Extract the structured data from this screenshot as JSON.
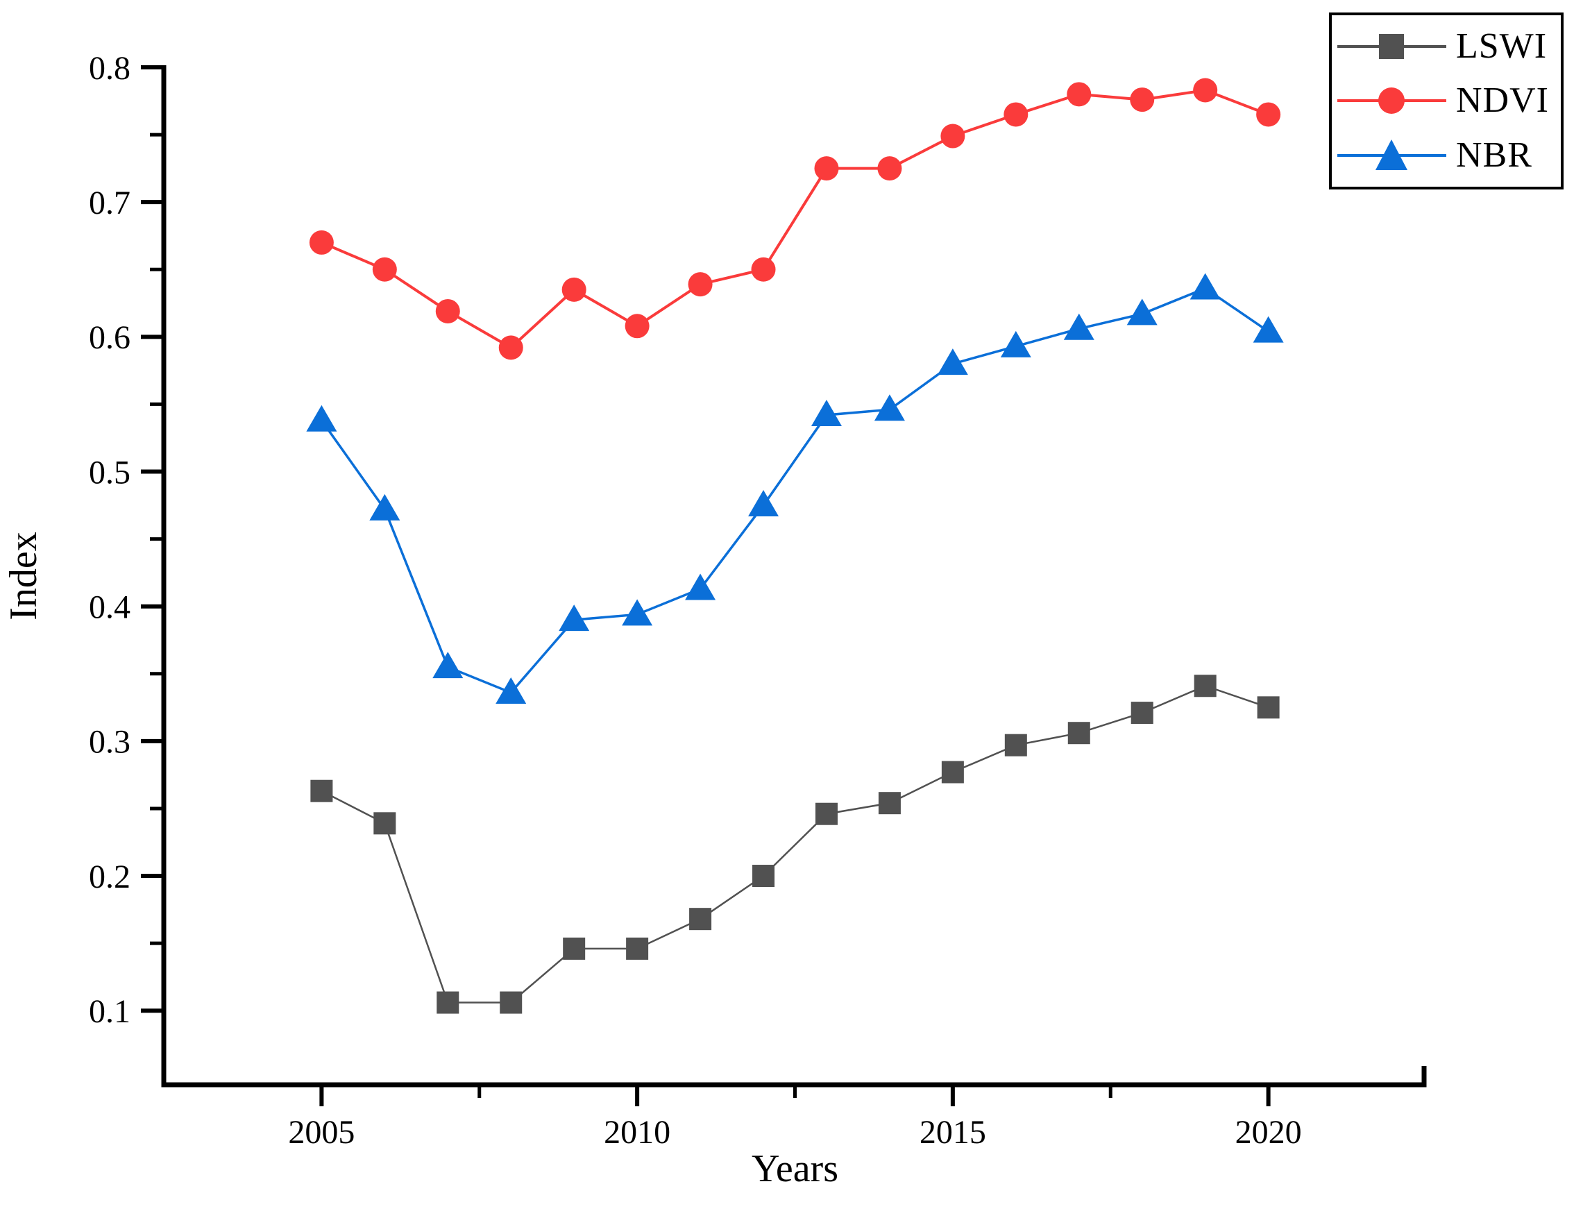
{
  "chart_data": {
    "type": "line",
    "title": "",
    "xlabel": "Years",
    "ylabel": "Index",
    "xlim": [
      2002.5,
      2022.5
    ],
    "ylim": [
      0.045,
      0.8
    ],
    "x_major_ticks": [
      2005,
      2010,
      2015,
      2020
    ],
    "x_minor_ticks": [
      2007.5,
      2012.5,
      2017.5
    ],
    "y_major_ticks": [
      0.1,
      0.2,
      0.3,
      0.4,
      0.5,
      0.6,
      0.7,
      0.8
    ],
    "y_minor_ticks": [
      0.15,
      0.25,
      0.35,
      0.45,
      0.55,
      0.65,
      0.75
    ],
    "grid": "off",
    "legend_position": "top-right",
    "x": [
      2005,
      2006,
      2007,
      2008,
      2009,
      2010,
      2011,
      2012,
      2013,
      2014,
      2015,
      2016,
      2017,
      2018,
      2019,
      2020
    ],
    "series": [
      {
        "name": "LSWI",
        "marker": "square",
        "color": "#515151",
        "line_width": 2.5,
        "values": [
          0.263,
          0.239,
          0.106,
          0.106,
          0.146,
          0.146,
          0.168,
          0.2,
          0.246,
          0.254,
          0.277,
          0.297,
          0.306,
          0.321,
          0.341,
          0.325
        ]
      },
      {
        "name": "NDVI",
        "marker": "circle",
        "color": "#FA3B3B",
        "line_width": 4,
        "values": [
          0.67,
          0.65,
          0.619,
          0.592,
          0.635,
          0.608,
          0.639,
          0.65,
          0.725,
          0.725,
          0.749,
          0.765,
          0.78,
          0.776,
          0.783,
          0.765
        ]
      },
      {
        "name": "NBR",
        "marker": "triangle",
        "color": "#0B6FD8",
        "line_width": 3.5,
        "values": [
          0.538,
          0.472,
          0.355,
          0.336,
          0.39,
          0.394,
          0.413,
          0.475,
          0.542,
          0.546,
          0.58,
          0.593,
          0.606,
          0.617,
          0.636,
          0.604
        ]
      }
    ],
    "axis_color": "#000000"
  }
}
